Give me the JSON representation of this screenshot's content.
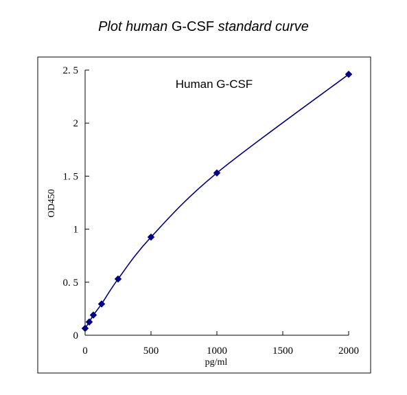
{
  "chart_data": {
    "type": "scatter",
    "title_parts": {
      "italic_1": "Plot human",
      "normal": " G-CSF ",
      "italic_2": "standard curve"
    },
    "annotation": "Human G-CSF",
    "xlabel": "pg/ml",
    "ylabel": "OD450",
    "xlim": [
      0,
      2000
    ],
    "ylim": [
      0,
      2.5
    ],
    "x_ticks": [
      0,
      500,
      1000,
      1500,
      2000
    ],
    "x_tick_labels": [
      "0",
      "500",
      "1000",
      "1500",
      "2000"
    ],
    "y_ticks": [
      0,
      0.5,
      1,
      1.5,
      2,
      2.5
    ],
    "y_tick_labels": [
      "0",
      "0. 5",
      "1",
      "1. 5",
      "2",
      "2. 5"
    ],
    "grid": false,
    "series": [
      {
        "x": [
          0,
          31.25,
          62.5,
          125,
          250,
          500,
          1000,
          2000
        ],
        "y": [
          0.065,
          0.125,
          0.19,
          0.295,
          0.53,
          0.925,
          1.53,
          2.46
        ],
        "color": "#000080",
        "marker": "diamond",
        "fit": "smooth-curve"
      }
    ]
  }
}
